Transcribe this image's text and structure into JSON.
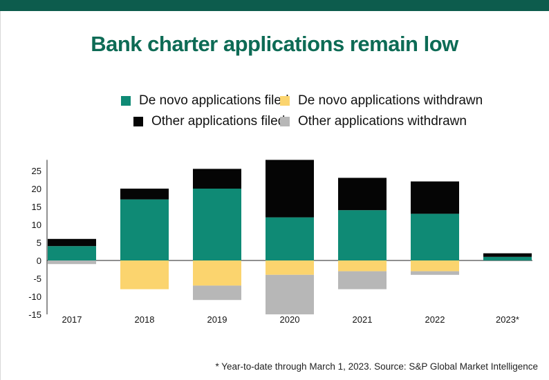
{
  "title": "Bank charter applications remain low",
  "footnote": "* Year-to-date through March 1, 2023. Source: S&P Global Market Intelligence",
  "colors": {
    "de_novo_filed": "#0f8a75",
    "de_novo_withdrawn": "#fbd46e",
    "other_filed": "#050505",
    "other_withdrawn": "#b7b7b7",
    "brand": "#0d5c4d",
    "title": "#0d6b55"
  },
  "legend": [
    {
      "label": "De novo applications filed",
      "color": "#0f8a75"
    },
    {
      "label": "De novo applications withdrawn",
      "color": "#fbd46e"
    },
    {
      "label": "Other applications filed",
      "color": "#050505"
    },
    {
      "label": "Other applications withdrawn",
      "color": "#b7b7b7"
    }
  ],
  "chart_data": {
    "type": "bar",
    "stacked": true,
    "title": "Bank charter applications remain low",
    "categories": [
      "2017",
      "2018",
      "2019",
      "2020",
      "2021",
      "2022",
      "2023*"
    ],
    "series": [
      {
        "name": "De novo applications filed",
        "values": [
          4,
          17,
          20,
          12,
          14,
          13,
          1
        ]
      },
      {
        "name": "Other applications filed",
        "values": [
          2,
          3,
          5.5,
          16,
          9,
          9,
          1
        ]
      },
      {
        "name": "De novo applications withdrawn",
        "values": [
          0,
          -8,
          -7,
          -4,
          -3,
          -3,
          0
        ]
      },
      {
        "name": "Other applications withdrawn",
        "values": [
          -1,
          0,
          -4,
          -11,
          -5,
          -1,
          0
        ]
      }
    ],
    "yticks": [
      "25",
      "20",
      "15",
      "10",
      "5",
      "0",
      "-5",
      "-10",
      "-15"
    ],
    "ylim": [
      -15,
      28
    ],
    "xlabel": "",
    "ylabel": "",
    "legend_position": "top",
    "grid": false
  }
}
